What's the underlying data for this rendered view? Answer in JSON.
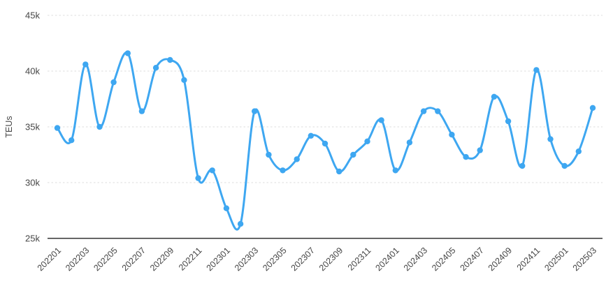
{
  "chart_data": {
    "type": "line",
    "title": "",
    "xlabel": "",
    "ylabel": "TEUs",
    "x": [
      "202201",
      "202202",
      "202203",
      "202204",
      "202205",
      "202206",
      "202207",
      "202208",
      "202209",
      "202210",
      "202211",
      "202212",
      "202301",
      "202302",
      "202303",
      "202304",
      "202305",
      "202306",
      "202307",
      "202308",
      "202309",
      "202310",
      "202311",
      "202312",
      "202401",
      "202402",
      "202403",
      "202404",
      "202405",
      "202406",
      "202407",
      "202408",
      "202409",
      "202410",
      "202411",
      "202412",
      "202501",
      "202502",
      "202503"
    ],
    "series": [
      {
        "name": "TEUs",
        "values": [
          34900,
          33800,
          40600,
          35000,
          39000,
          41600,
          36400,
          40300,
          41000,
          39200,
          30400,
          31100,
          27700,
          26300,
          36400,
          32500,
          31100,
          32100,
          34200,
          33500,
          31000,
          32500,
          33700,
          35600,
          31100,
          33600,
          36400,
          36400,
          34300,
          32300,
          32900,
          37700,
          35500,
          31500,
          40100,
          33900,
          31500,
          32800,
          36700
        ]
      }
    ],
    "ylim": [
      25000,
      45000
    ],
    "y_ticks": [
      {
        "value": 25000,
        "label": "25k"
      },
      {
        "value": 30000,
        "label": "30k"
      },
      {
        "value": 35000,
        "label": "35k"
      },
      {
        "value": 40000,
        "label": "40k"
      },
      {
        "value": 45000,
        "label": "45k"
      }
    ],
    "x_tick_every": 2,
    "x_tick_labels": [
      "202201",
      "202203",
      "202205",
      "202207",
      "202209",
      "202211",
      "202301",
      "202303",
      "202305",
      "202307",
      "202309",
      "202311",
      "202401",
      "202403",
      "202405",
      "202407",
      "202409",
      "202411",
      "202501",
      "202503"
    ],
    "x_tick_rotation_deg": 45,
    "grid": {
      "horizontal": true,
      "vertical": false,
      "style": "dotted"
    },
    "legend": "none",
    "smooth": true,
    "colors": {
      "line": "#3EA7F1",
      "point": "#3EA7F1",
      "axis_line": "#333333",
      "grid_line": "#dcdcdc",
      "tick_label": "#464646",
      "background": "#ffffff"
    }
  }
}
